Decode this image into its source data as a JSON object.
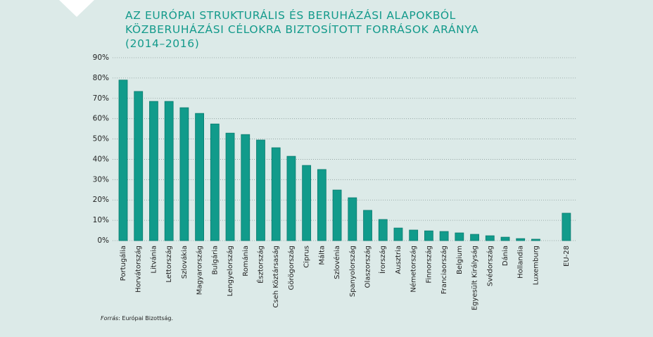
{
  "chart_data": {
    "type": "bar",
    "title": [
      "AZ EURÓPAI STRUKTURÁLIS ÉS BERUHÁZÁSI ALAPOKBÓL",
      "KÖZBERUHÁZÁSI CÉLOKRA BIZTOSÍTOTT FORRÁSOK ARÁNYA",
      "(2014–2016)"
    ],
    "categories": [
      "Portugália",
      "Horvátország",
      "Litvánia",
      "Lettország",
      "Szlovákia",
      "Magyarország",
      "Bulgária",
      "Lengyelország",
      "Románia",
      "Észtország",
      "Cseh Köztársaság",
      "Görögország",
      "Ciprus",
      "Málta",
      "Szlovénia",
      "Spanyolország",
      "Olaszország",
      "Írország",
      "Ausztria",
      "Németország",
      "Finnország",
      "Franciaország",
      "Belgium",
      "Egyesült Királyság",
      "Svédország",
      "Dánia",
      "Hollandia",
      "Luxemburg",
      "EU-28"
    ],
    "values": [
      79,
      73.4,
      68.5,
      68.5,
      65.4,
      62.6,
      57.4,
      52.9,
      52.2,
      49.5,
      45.7,
      41.5,
      37,
      35,
      24.9,
      21.1,
      14.9,
      10.4,
      6.2,
      5.2,
      4.8,
      4.5,
      3.8,
      3.1,
      2.4,
      1.7,
      1.0,
      0.7,
      13.5
    ],
    "color": "#119b8b",
    "ylim": [
      0,
      90
    ],
    "yticks": [
      {
        "value": 0,
        "label": "0%"
      },
      {
        "value": 10,
        "label": "10%"
      },
      {
        "value": 20,
        "label": "20%"
      },
      {
        "value": 30,
        "label": "30%"
      },
      {
        "value": 40,
        "label": "40%"
      },
      {
        "value": 50,
        "label": "50%"
      },
      {
        "value": 60,
        "label": "60%"
      },
      {
        "value": 70,
        "label": "70%"
      },
      {
        "value": 80,
        "label": "80%"
      },
      {
        "value": 90,
        "label": "90%"
      }
    ],
    "grid": true,
    "source": {
      "label": "Forrás",
      "text": ": Európai Bizottság."
    }
  }
}
